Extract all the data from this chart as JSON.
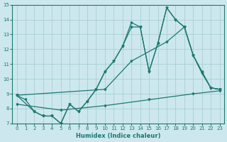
{
  "xlabel": "Humidex (Indice chaleur)",
  "xlim": [
    -0.5,
    23.5
  ],
  "ylim": [
    7,
    15
  ],
  "xticks": [
    0,
    1,
    2,
    3,
    4,
    5,
    6,
    7,
    8,
    9,
    10,
    11,
    12,
    13,
    14,
    15,
    16,
    17,
    18,
    19,
    20,
    21,
    22,
    23
  ],
  "yticks": [
    7,
    8,
    9,
    10,
    11,
    12,
    13,
    14,
    15
  ],
  "bg_color": "#cce8ee",
  "line_color": "#1e7870",
  "grid_color": "#aacdd6",
  "line1_x": [
    0,
    1,
    2,
    3,
    4,
    5,
    6,
    7,
    8,
    9,
    10,
    11,
    12,
    13,
    14,
    15,
    16,
    17,
    18,
    19,
    20,
    21,
    22,
    23
  ],
  "line1_y": [
    8.9,
    8.6,
    7.8,
    7.5,
    7.5,
    7.0,
    8.3,
    7.8,
    8.5,
    9.3,
    10.5,
    11.2,
    12.2,
    13.8,
    13.5,
    10.5,
    12.4,
    14.8,
    14.0,
    13.5,
    11.6,
    10.5,
    9.4,
    9.3
  ],
  "line2_x": [
    0,
    2,
    3,
    4,
    5,
    6,
    7,
    8,
    9,
    10,
    11,
    12,
    13,
    14,
    15,
    16,
    17,
    18,
    19,
    20,
    21,
    22,
    23
  ],
  "line2_y": [
    8.9,
    7.8,
    7.5,
    7.5,
    7.0,
    8.3,
    7.8,
    8.5,
    9.3,
    10.5,
    11.2,
    12.2,
    13.5,
    13.5,
    10.5,
    12.4,
    14.8,
    14.0,
    13.5,
    11.6,
    10.4,
    9.4,
    9.3
  ],
  "line3_x": [
    0,
    10,
    13,
    17,
    19,
    20,
    21,
    22,
    23
  ],
  "line3_y": [
    8.9,
    9.3,
    11.2,
    12.5,
    13.5,
    11.6,
    10.4,
    9.4,
    9.3
  ],
  "line4_x": [
    0,
    5,
    10,
    15,
    20,
    23
  ],
  "line4_y": [
    8.3,
    7.9,
    8.2,
    8.6,
    9.0,
    9.2
  ]
}
